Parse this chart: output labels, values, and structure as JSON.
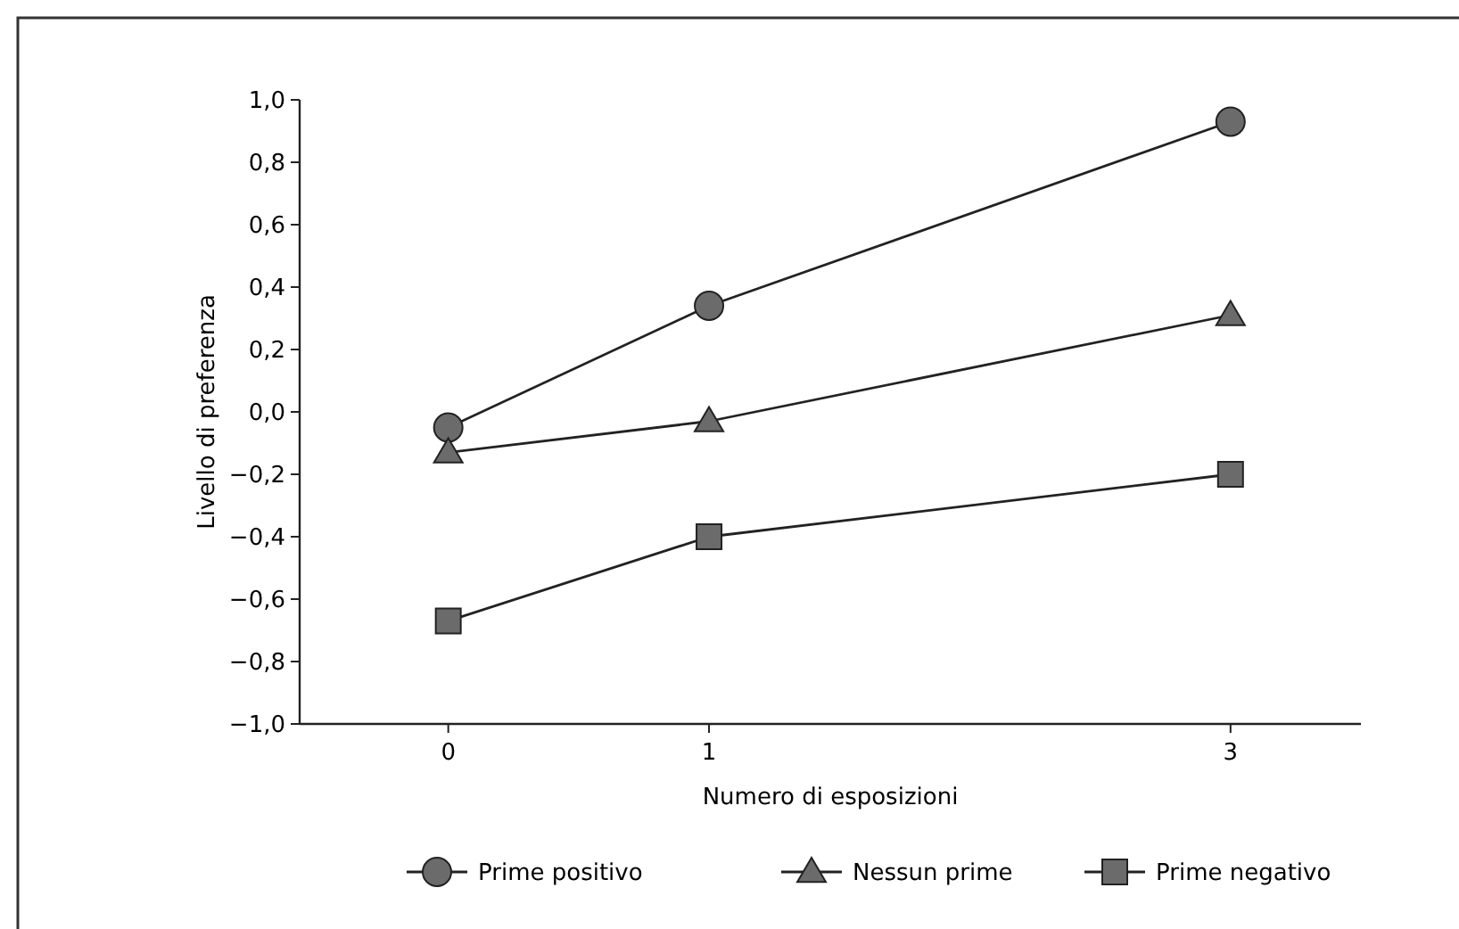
{
  "chart_data": {
    "type": "line",
    "xlabel": "Numero di esposizioni",
    "ylabel": "Livello di preferenza",
    "x": [
      0,
      1,
      3
    ],
    "xlim": [
      -0.57,
      3.5
    ],
    "xticks": [
      0,
      1,
      3
    ],
    "ylim": [
      -1,
      1
    ],
    "yticks": [
      {
        "value": -1,
        "label": "−1,0"
      },
      {
        "value": -0.8,
        "label": "−0,8"
      },
      {
        "value": -0.6,
        "label": "−0,6"
      },
      {
        "value": -0.4,
        "label": "−0,4"
      },
      {
        "value": -0.2,
        "label": "−0,2"
      },
      {
        "value": 0,
        "label": "0,0"
      },
      {
        "value": 0.2,
        "label": "0,2"
      },
      {
        "value": 0.4,
        "label": "0,4"
      },
      {
        "value": 0.6,
        "label": "0,6"
      },
      {
        "value": 0.8,
        "label": "0,8"
      },
      {
        "value": 1,
        "label": "1,0"
      }
    ],
    "series": [
      {
        "name": "Prime positivo",
        "color": "#6b6b6b",
        "marker": "circle",
        "values": [
          -0.05,
          0.34,
          0.93
        ]
      },
      {
        "name": "Nessun prime",
        "color": "#6b6b6b",
        "marker": "triangle",
        "values": [
          -0.13,
          -0.03,
          0.31
        ]
      },
      {
        "name": "Prime negativo",
        "color": "#6b6b6b",
        "marker": "square",
        "values": [
          -0.67,
          -0.4,
          -0.2
        ]
      }
    ],
    "grid": false,
    "legend": "bottom",
    "line_style": "solid"
  }
}
